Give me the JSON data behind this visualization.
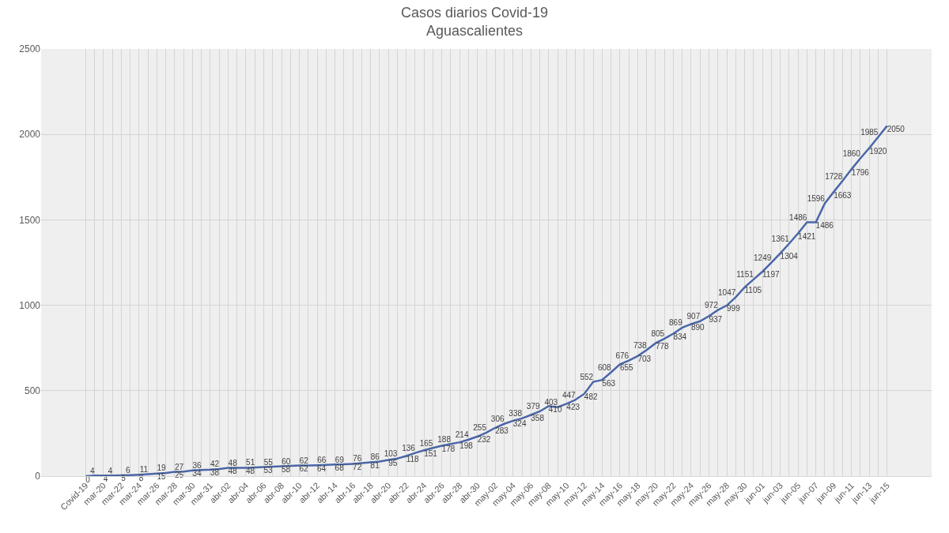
{
  "chart_data": {
    "type": "line",
    "title": "Casos diarios Covid-19",
    "subtitle": "Aguascalientes",
    "categories": [
      "Covid-19",
      null,
      "mar-20",
      null,
      "mar-22",
      null,
      "mar-24",
      null,
      "mar-26",
      null,
      "mar-28",
      null,
      "mar-30",
      null,
      "mar-31",
      null,
      "abr-02",
      null,
      "abr-04",
      null,
      "abr-06",
      null,
      "abr-08",
      null,
      "abr-10",
      null,
      "abr-12",
      null,
      "abr-14",
      null,
      "abr-16",
      null,
      "abr-18",
      null,
      "abr-20",
      null,
      "abr-22",
      null,
      "abr-24",
      null,
      "abr-26",
      null,
      "abr-28",
      null,
      "abr-30",
      null,
      "may-02",
      null,
      "may-04",
      null,
      "may-06",
      null,
      "may-08",
      null,
      "may-10",
      null,
      "may-12",
      null,
      "may-14",
      null,
      "may-16",
      null,
      "may-18",
      null,
      "may-20",
      null,
      "may-22",
      null,
      "may-24",
      null,
      "may-26",
      null,
      "may-28",
      null,
      "may-30",
      null,
      "jun-01",
      null,
      "jun-03",
      null,
      "jun-05",
      null,
      "jun-07",
      null,
      "jun-09",
      null,
      "jun-11",
      null,
      "jun-13",
      null,
      "jun-15"
    ],
    "values": [
      0,
      4,
      4,
      4,
      5,
      6,
      8,
      11,
      15,
      19,
      25,
      27,
      34,
      36,
      38,
      42,
      48,
      48,
      48,
      51,
      53,
      55,
      58,
      60,
      62,
      62,
      64,
      66,
      68,
      69,
      72,
      76,
      81,
      86,
      95,
      103,
      118,
      136,
      151,
      165,
      178,
      188,
      198,
      214,
      232,
      255,
      283,
      306,
      324,
      338,
      358,
      379,
      410,
      403,
      423,
      447,
      482,
      552,
      563,
      608,
      655,
      676,
      703,
      738,
      778,
      805,
      834,
      869,
      890,
      907,
      937,
      972,
      999,
      1047,
      1105,
      1151,
      1197,
      1249,
      1304,
      1361,
      1421,
      1486,
      1486,
      1596,
      1663,
      1728,
      1796,
      1860,
      1920,
      1985,
      2050
    ],
    "color": "#4a66a8",
    "line_style": "solid",
    "ylim": [
      0,
      2500
    ],
    "yticks": [
      0,
      500,
      1000,
      1500,
      2000,
      2500
    ],
    "grid": true,
    "data_labels": true
  }
}
